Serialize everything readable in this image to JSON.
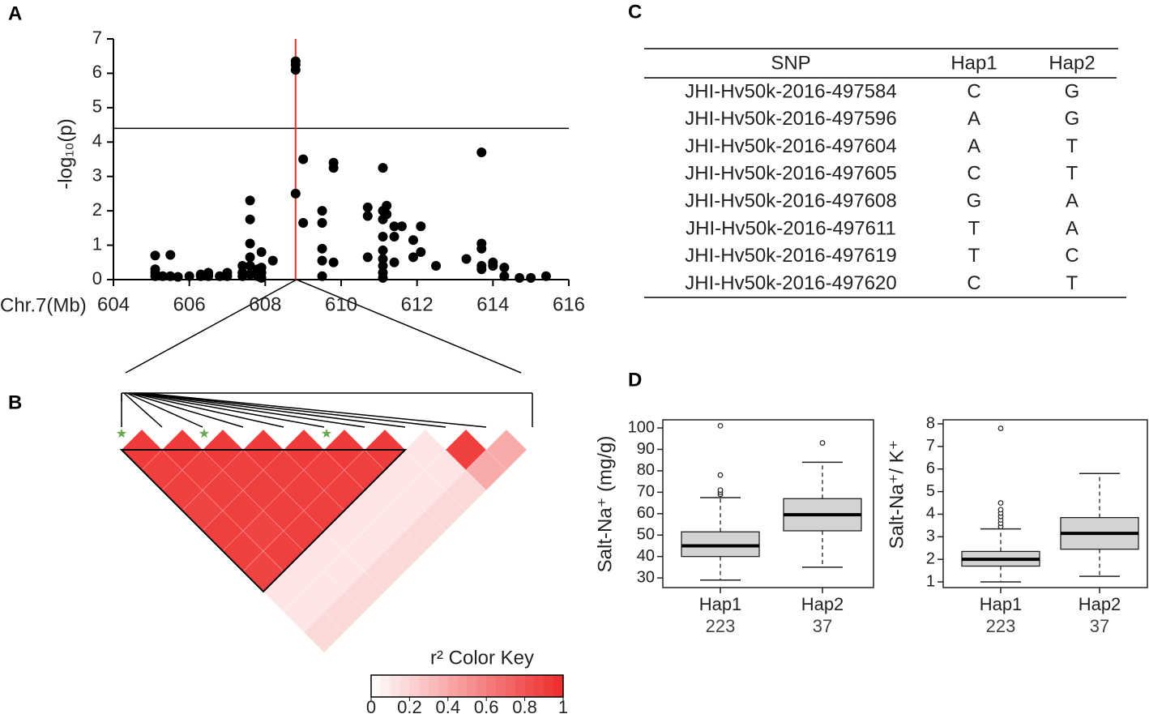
{
  "panel_labels": [
    "A",
    "B",
    "C",
    "D"
  ],
  "chart_data": [
    {
      "type": "scatter",
      "xlabel": "Chr.7(Mb)",
      "ylabel": "-log₁₀(p)",
      "xlim": [
        604,
        616
      ],
      "xticks": [
        604,
        606,
        608,
        610,
        612,
        614,
        616
      ],
      "ylim": [
        0,
        7
      ],
      "yticks": [
        0,
        1,
        2,
        3,
        4,
        5,
        6,
        7
      ],
      "threshold": 4.4,
      "marker_x": 608.8,
      "marker_color": "#e8302a",
      "color": "#000000",
      "x": [
        605.1,
        605.1,
        605.1,
        605.1,
        605.3,
        605.5,
        605.5,
        605.7,
        606.0,
        606.3,
        606.3,
        606.5,
        606.5,
        606.8,
        607.0,
        607.0,
        607.4,
        607.4,
        607.4,
        607.6,
        607.6,
        607.6,
        607.6,
        607.6,
        607.6,
        607.8,
        607.8,
        607.9,
        607.9,
        607.9,
        607.9,
        608.2,
        608.8,
        608.8,
        608.8,
        608.8,
        609.0,
        609.0,
        609.5,
        609.5,
        609.5,
        609.5,
        609.5,
        609.8,
        609.8,
        609.8,
        610.7,
        610.7,
        610.7,
        611.1,
        611.1,
        611.1,
        611.1,
        611.1,
        611.1,
        611.1,
        611.1,
        611.1,
        611.2,
        611.2,
        611.4,
        611.4,
        611.4,
        611.6,
        611.9,
        611.9,
        612.1,
        612.1,
        612.5,
        613.3,
        613.7,
        613.7,
        613.7,
        613.7,
        613.7,
        614.0,
        614.0,
        614.3,
        614.3,
        614.7,
        615.0,
        615.4
      ],
      "values": [
        0.3,
        0.2,
        0.1,
        0.7,
        0.1,
        0.1,
        0.72,
        0.08,
        0.1,
        0.1,
        0.15,
        0.2,
        0.1,
        0.1,
        0.2,
        0.1,
        0.4,
        0.2,
        0.1,
        2.3,
        1.75,
        1.05,
        0.65,
        0.4,
        0.15,
        0.1,
        0.3,
        0.8,
        0.35,
        0.2,
        0.05,
        0.55,
        6.35,
        6.25,
        6.1,
        2.5,
        3.5,
        1.65,
        2.0,
        1.65,
        0.9,
        0.55,
        0.1,
        3.4,
        3.25,
        0.5,
        2.1,
        1.85,
        0.65,
        3.25,
        2.0,
        1.75,
        1.25,
        0.85,
        0.6,
        0.4,
        0.2,
        0.05,
        2.15,
        1.9,
        1.55,
        1.25,
        0.5,
        1.55,
        1.15,
        0.65,
        1.55,
        0.8,
        0.4,
        0.6,
        3.7,
        1.05,
        0.9,
        0.4,
        0.3,
        0.5,
        0.4,
        0.35,
        0.1,
        0.05,
        0.05,
        0.1
      ]
    },
    {
      "type": "ld_heatmap",
      "color": "#ee2a2a",
      "r2": [
        [
          0.92,
          0.9,
          0.9,
          0.88,
          0.9,
          0.9,
          0.88,
          0.12,
          0.12,
          0.18
        ],
        [
          0.92,
          0.9,
          0.9,
          0.9,
          0.88,
          0.9,
          0.12,
          0.12,
          0.18
        ],
        [
          0.92,
          0.9,
          0.9,
          0.9,
          0.9,
          0.12,
          0.12,
          0.18
        ],
        [
          0.92,
          0.9,
          0.9,
          0.9,
          0.12,
          0.12,
          0.18
        ],
        [
          0.92,
          0.9,
          0.9,
          0.12,
          0.12,
          0.18
        ],
        [
          0.92,
          0.9,
          0.12,
          0.12,
          0.18
        ],
        [
          0.92,
          0.12,
          0.12,
          0.18
        ],
        [
          0.12,
          0.12,
          0.18
        ],
        [
          0.9,
          0.4
        ],
        [
          0.4
        ]
      ],
      "blocks": [
        [
          0,
          7
        ]
      ],
      "colorkey_title": "r² Color Key",
      "colorkey_lim": [
        0,
        1
      ],
      "colorkey_ticks": [
        0,
        0.2,
        0.4,
        0.6,
        0.8,
        1
      ]
    },
    {
      "type": "box",
      "ylabel": "Salt-Na⁺ (mg/g)",
      "ylim": [
        25.5,
        103.8
      ],
      "yticks": [
        30,
        40,
        50,
        60,
        70,
        80,
        90,
        100
      ],
      "categories": [
        "Hap1",
        "Hap2"
      ],
      "n": [
        223,
        37
      ],
      "color": "#d3d3d3",
      "whisker_low": [
        29,
        35
      ],
      "q1": [
        40,
        52
      ],
      "median": [
        45,
        59.5
      ],
      "q3": [
        51.5,
        67
      ],
      "whisker_high": [
        67.5,
        84
      ],
      "outliers": [
        [
          69,
          70,
          71,
          78,
          101
        ],
        [
          93
        ]
      ]
    },
    {
      "type": "box",
      "ylabel": "Salt-Na⁺/ K⁺",
      "ylim": [
        0.75,
        8.18
      ],
      "yticks": [
        1,
        2,
        3,
        4,
        5,
        6,
        7,
        8
      ],
      "categories": [
        "Hap1",
        "Hap2"
      ],
      "n": [
        223,
        37
      ],
      "color": "#d3d3d3",
      "whisker_low": [
        1.0,
        1.25
      ],
      "q1": [
        1.7,
        2.45
      ],
      "median": [
        2.0,
        3.15
      ],
      "q3": [
        2.35,
        3.85
      ],
      "whisker_high": [
        3.35,
        5.8
      ],
      "outliers": [
        [
          3.45,
          3.6,
          3.75,
          3.9,
          4.05,
          4.2,
          4.5,
          7.8
        ],
        []
      ]
    }
  ],
  "table": {
    "header": [
      "SNP",
      "Hap1",
      "Hap2"
    ],
    "rows": [
      [
        "JHI-Hv50k-2016-497584",
        "C",
        "G"
      ],
      [
        "JHI-Hv50k-2016-497596",
        "A",
        "G"
      ],
      [
        "JHI-Hv50k-2016-497604",
        "A",
        "T"
      ],
      [
        "JHI-Hv50k-2016-497605",
        "C",
        "T"
      ],
      [
        "JHI-Hv50k-2016-497608",
        "G",
        "A"
      ],
      [
        "JHI-Hv50k-2016-497611",
        "T",
        "A"
      ],
      [
        "JHI-Hv50k-2016-497619",
        "T",
        "C"
      ],
      [
        "JHI-Hv50k-2016-497620",
        "C",
        "T"
      ]
    ]
  }
}
